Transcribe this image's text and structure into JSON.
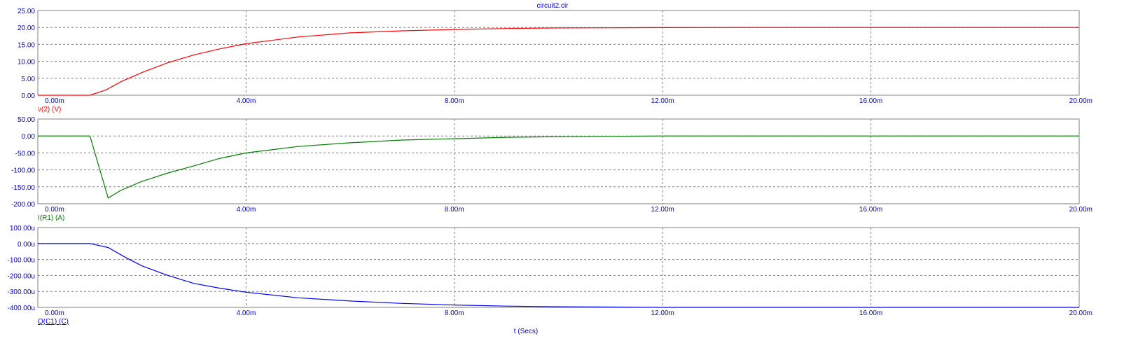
{
  "chart_data": {
    "type": "line",
    "title": "circuit2.cir",
    "xlabel": "t (Secs)",
    "xlim": [
      0,
      20
    ],
    "x_ticks": [
      "0.00m",
      "4.00m",
      "8.00m",
      "12.00m",
      "16.00m",
      "20.00m"
    ],
    "grid": true,
    "panels": [
      {
        "series_label": "v(2) (V)",
        "color": "#ff0000",
        "ylim": [
          0,
          25
        ],
        "y_ticks": [
          "25.00",
          "20.00",
          "15.00",
          "10.00",
          "5.00",
          "0.00"
        ],
        "x": [
          0,
          1.0,
          1.3,
          1.6,
          2.0,
          2.5,
          3.0,
          3.5,
          4.0,
          5.0,
          6.0,
          7.0,
          8.0,
          9.0,
          10.0,
          11.0,
          12.0,
          14.0,
          16.0,
          18.0,
          20.0
        ],
        "values": [
          0,
          0,
          1.5,
          4.0,
          6.7,
          9.6,
          11.9,
          13.7,
          15.2,
          17.2,
          18.4,
          19.0,
          19.4,
          19.7,
          19.85,
          19.9,
          19.95,
          20.0,
          20.0,
          20.0,
          20.0
        ]
      },
      {
        "series_label": "I(R1) (A)",
        "color": "#008000",
        "ylim": [
          -200,
          50
        ],
        "y_ticks": [
          "50.00",
          "0.00",
          "-50.00",
          "-100.00",
          "-150.00",
          "-200.00"
        ],
        "x": [
          0,
          1.0,
          1.35,
          1.6,
          2.0,
          2.5,
          3.0,
          3.5,
          4.0,
          5.0,
          6.0,
          7.0,
          8.0,
          9.0,
          10.0,
          11.0,
          12.0,
          14.0,
          16.0,
          18.0,
          20.0
        ],
        "values": [
          0,
          0,
          -183,
          -160,
          -134,
          -109,
          -88,
          -66,
          -50,
          -31,
          -20,
          -12,
          -8,
          -4,
          -2,
          -1,
          0,
          0,
          0,
          0,
          0
        ]
      },
      {
        "series_label": "Q(C1) (C)",
        "color": "#0000ff",
        "ylim": [
          -400,
          100
        ],
        "y_ticks": [
          "100.00u",
          "0.00u",
          "-100.00u",
          "-200.00u",
          "-300.00u",
          "-400.00u"
        ],
        "x": [
          0,
          1.0,
          1.35,
          1.7,
          2.0,
          2.5,
          3.0,
          3.5,
          4.0,
          5.0,
          6.0,
          7.0,
          8.0,
          9.0,
          10.0,
          11.0,
          12.0,
          14.0,
          16.0,
          18.0,
          20.0
        ],
        "values": [
          0,
          0,
          -25,
          -90,
          -140,
          -200,
          -250,
          -280,
          -305,
          -340,
          -360,
          -375,
          -385,
          -392,
          -396,
          -398,
          -400,
          -400,
          -400,
          -400,
          -400
        ]
      }
    ]
  }
}
